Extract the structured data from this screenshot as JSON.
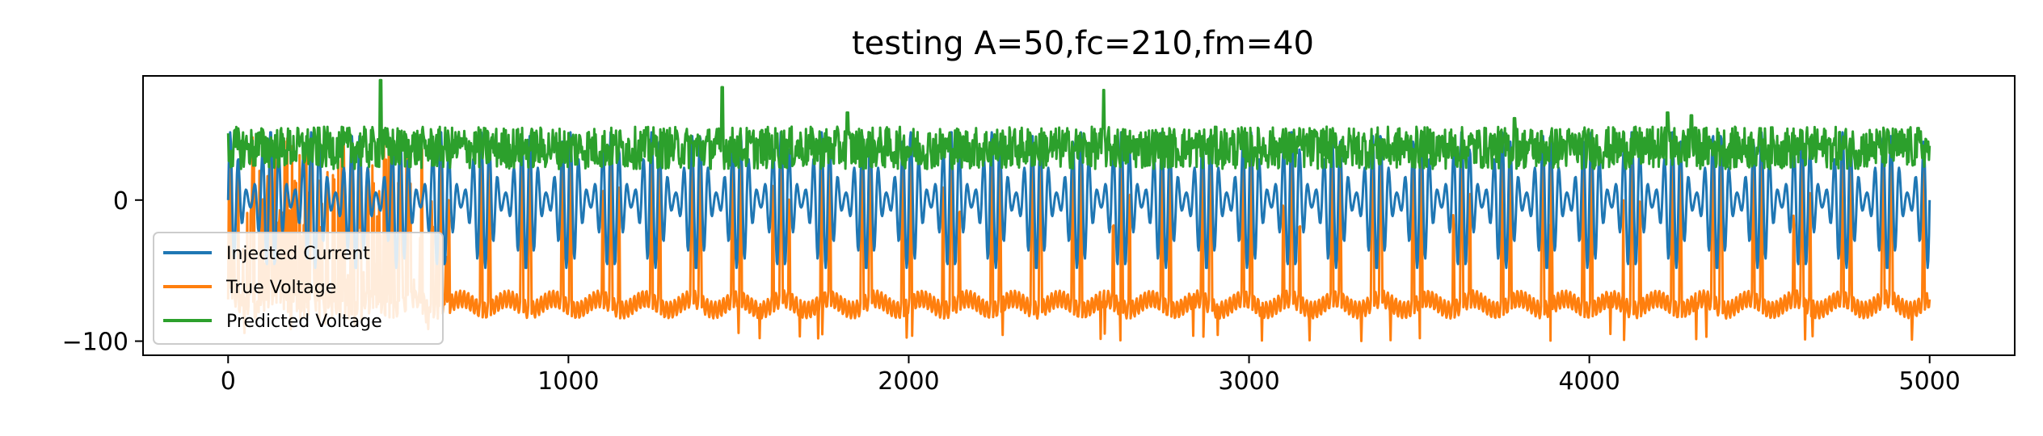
{
  "chart_data": {
    "type": "line",
    "title": "testing A=50,fc=210,fm=40",
    "xlabel": "",
    "ylabel": "",
    "xlim": [
      -250,
      5250
    ],
    "ylim": [
      -110,
      88
    ],
    "xticks": [
      0,
      1000,
      2000,
      3000,
      4000,
      5000
    ],
    "xtick_labels": [
      "0",
      "1000",
      "2000",
      "3000",
      "4000",
      "5000"
    ],
    "yticks": [
      0,
      -100
    ],
    "ytick_labels": [
      "0",
      "−100"
    ],
    "grid": false,
    "legend_position": "lower-left",
    "x_range": [
      0,
      5000
    ],
    "series": [
      {
        "name": "Injected Current",
        "color": "#1f77b4",
        "amplitude": 50,
        "carrier_frequency": 210,
        "modulation_frequency": 40,
        "x": [
          0,
          2,
          4,
          6,
          8,
          10,
          12,
          14,
          16,
          18,
          20,
          22,
          24,
          26,
          28,
          30,
          32,
          34,
          36,
          38,
          40,
          4980,
          4985,
          4990,
          4995,
          5000
        ],
        "y": [
          0,
          3,
          10,
          22,
          36,
          45,
          40,
          22,
          0,
          -22,
          -40,
          -44,
          -30,
          -10,
          8,
          22,
          34,
          44,
          46,
          30,
          5,
          8,
          15,
          12,
          5,
          0
        ]
      },
      {
        "name": "True Voltage",
        "color": "#ff7f0e",
        "x": [
          0,
          15,
          30,
          45,
          60,
          75,
          650,
          700,
          750,
          800,
          850,
          4950,
          4970,
          4985,
          5000
        ],
        "y": [
          -60,
          20,
          -70,
          30,
          -80,
          -75,
          -65,
          -58,
          -75,
          -68,
          -100,
          -76,
          -68,
          -72,
          -74
        ]
      },
      {
        "name": "Predicted Voltage",
        "color": "#2ca02c",
        "x": [
          0,
          10,
          20,
          30,
          40,
          50,
          445,
          448,
          452,
          1450,
          1452,
          1456,
          2570,
          2573,
          2577,
          4990,
          5000
        ],
        "y": [
          18,
          45,
          30,
          48,
          22,
          40,
          30,
          85,
          35,
          30,
          80,
          35,
          30,
          78,
          35,
          42,
          38
        ]
      }
    ]
  }
}
